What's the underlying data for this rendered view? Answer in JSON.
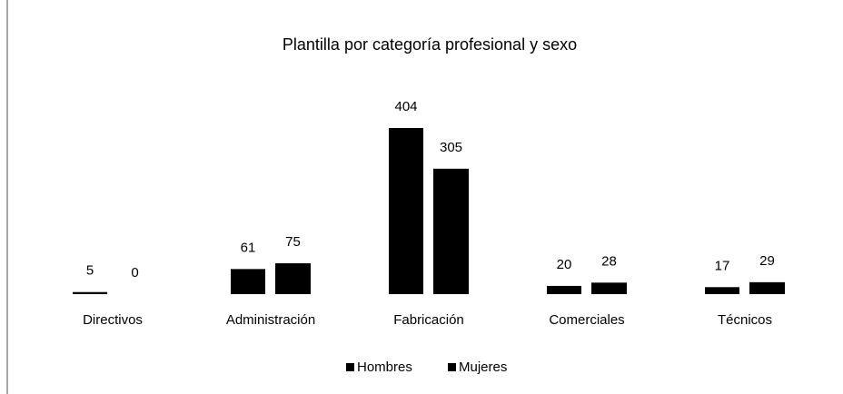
{
  "chart_data": {
    "type": "bar",
    "title": "Plantilla por categoría profesional y sexo",
    "categories": [
      "Directivos",
      "Administración",
      "Fabricación",
      "Comerciales",
      "Técnicos"
    ],
    "series": [
      {
        "name": "Hombres",
        "color": "#000000",
        "values": [
          5,
          61,
          404,
          20,
          17
        ]
      },
      {
        "name": "Mujeres",
        "color": "#000000",
        "values": [
          0,
          75,
          305,
          28,
          29
        ]
      }
    ],
    "legend": "bottom"
  }
}
